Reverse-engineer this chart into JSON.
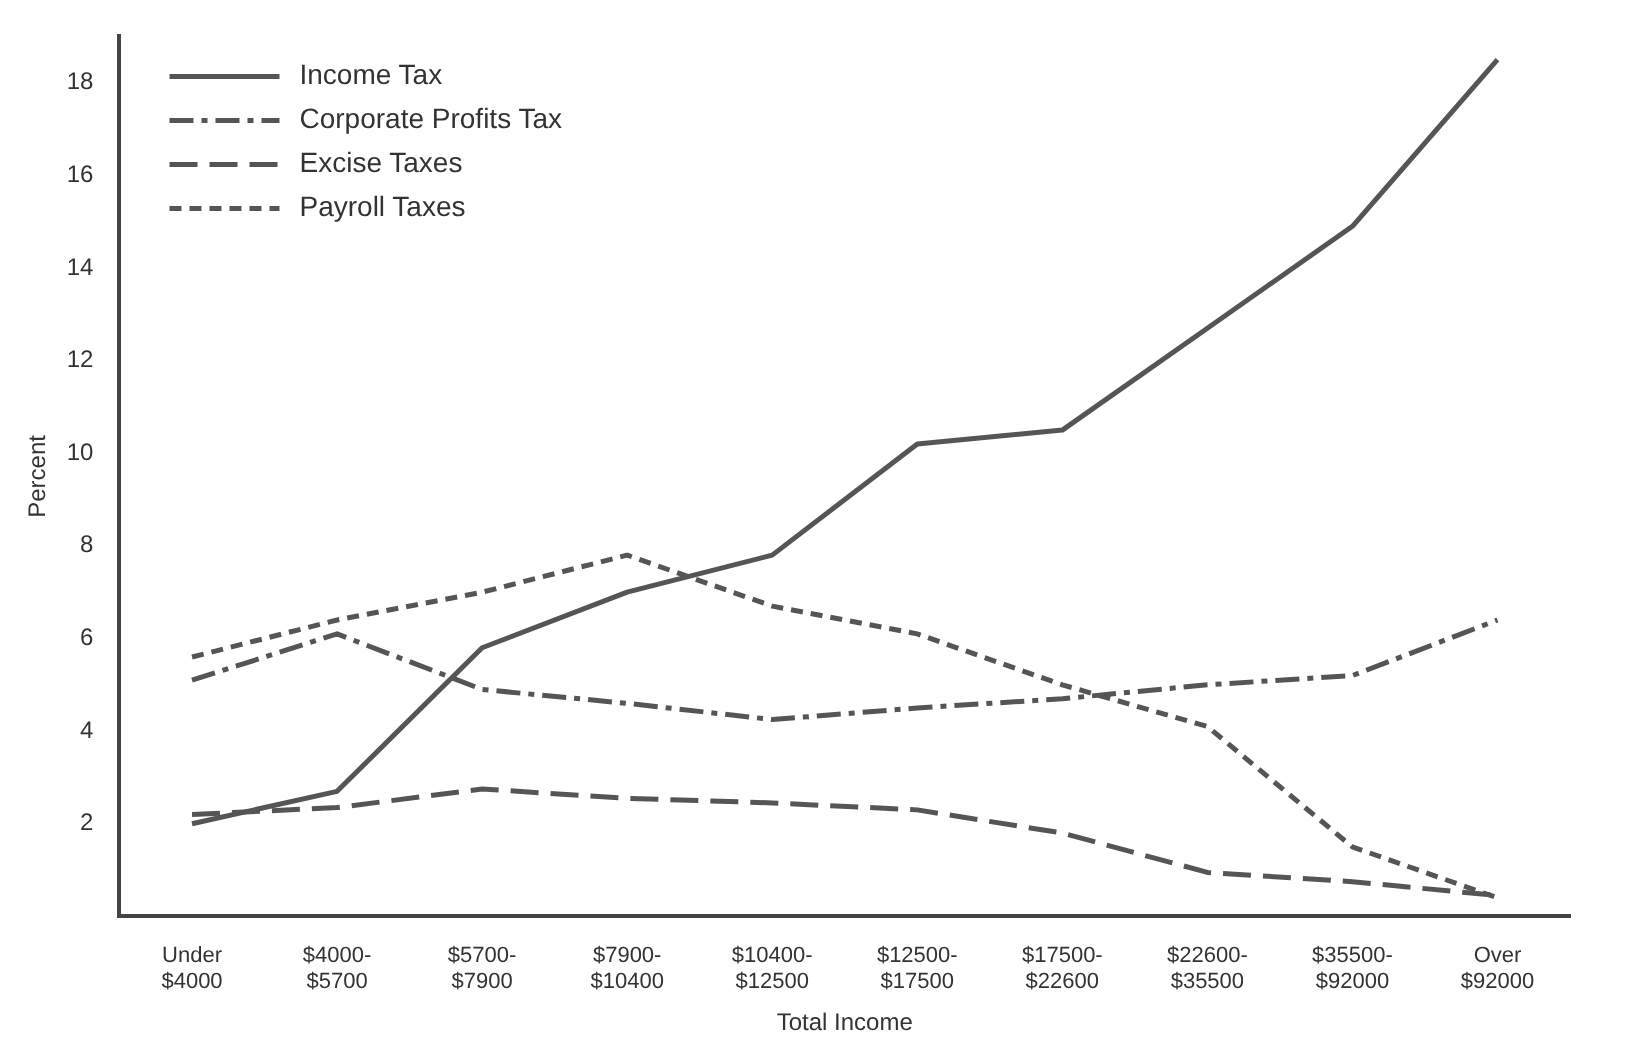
{
  "chart_data": {
    "type": "line",
    "xlabel": "Total Income",
    "ylabel": "Percent",
    "categories": [
      "Under $4000",
      "$4000- $5700",
      "$5700- $7900",
      "$7900- $10400",
      "$10400- $12500",
      "$12500- $17500",
      "$17500- $22600",
      "$22600- $35500",
      "$35500- $92000",
      "Over $92000"
    ],
    "series": [
      {
        "name": "Income Tax",
        "color": "#555555",
        "line_style": "solid",
        "values": [
          2.0,
          2.7,
          5.8,
          7.0,
          7.8,
          10.2,
          10.5,
          12.7,
          14.9,
          18.5
        ]
      },
      {
        "name": "Corporate Profits Tax",
        "color": "#555555",
        "line_style": "dashdot",
        "values": [
          5.1,
          6.1,
          4.9,
          4.6,
          4.25,
          4.5,
          4.7,
          5.0,
          5.2,
          6.4
        ]
      },
      {
        "name": "Excise Taxes",
        "color": "#555555",
        "line_style": "dashed",
        "values": [
          2.2,
          2.35,
          2.75,
          2.55,
          2.45,
          2.3,
          1.8,
          0.95,
          0.75,
          0.45
        ]
      },
      {
        "name": "Payroll Taxes",
        "color": "#555555",
        "line_style": "dotted",
        "values": [
          5.6,
          6.4,
          7.0,
          7.8,
          6.7,
          6.1,
          5.0,
          4.1,
          1.5,
          0.4
        ]
      }
    ],
    "ylim": [
      0,
      19
    ],
    "yticks": [
      2,
      4,
      6,
      8,
      10,
      12,
      14,
      16,
      18
    ],
    "legend": "top left",
    "grid": false,
    "marker": "none"
  }
}
